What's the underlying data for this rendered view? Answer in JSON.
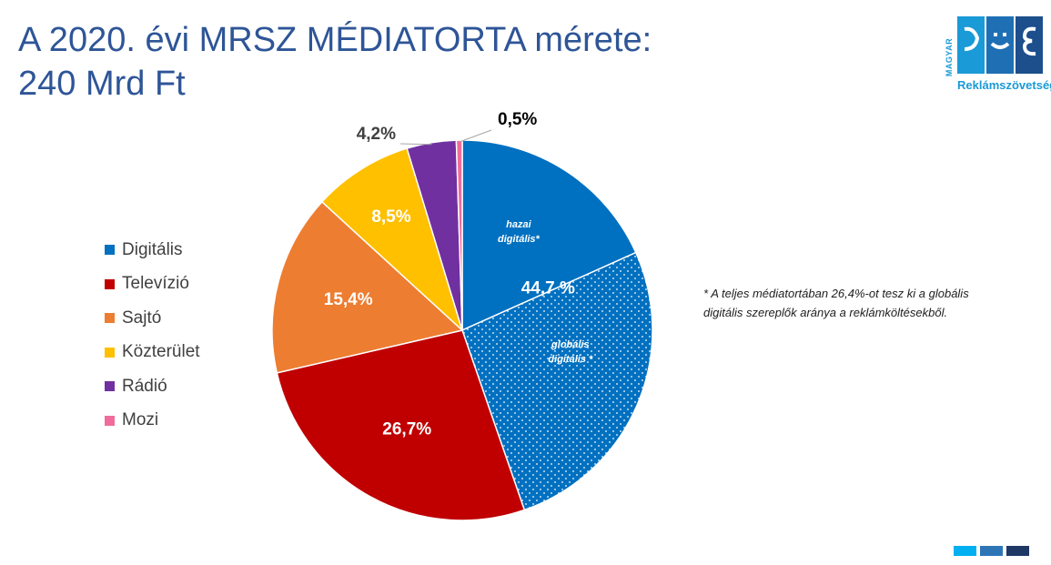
{
  "title": {
    "line1": "A 2020. évi MRSZ MÉDIATORTA mérete:",
    "line2": "240 Mrd Ft"
  },
  "logo": {
    "small_text": "MAGYAR",
    "large_text": "Reklámszövetség"
  },
  "chart_data": {
    "type": "pie",
    "start_angle_deg": 0,
    "direction": "clockwise",
    "slices": [
      {
        "name": "Digitális",
        "value": 44.7,
        "label": "44,7 %",
        "color": "#0070c0",
        "label_color": "#ffffff"
      },
      {
        "name": "Televízió",
        "value": 26.7,
        "label": "26,7%",
        "color": "#c00000",
        "label_color": "#ffffff"
      },
      {
        "name": "Sajtó",
        "value": 15.4,
        "label": "15,4%",
        "color": "#ed7d31",
        "label_color": "#ffffff"
      },
      {
        "name": "Közterület",
        "value": 8.5,
        "label": "8,5%",
        "color": "#ffc000",
        "label_color": "#ffffff"
      },
      {
        "name": "Rádió",
        "value": 4.2,
        "label": "4,2%",
        "color": "#7030a0",
        "label_color": "#404040"
      },
      {
        "name": "Mozi",
        "value": 0.5,
        "label": "0,5%",
        "color": "#f06c9b",
        "label_color": "#000000"
      }
    ],
    "digital_split": {
      "domestic": {
        "label_line1": "hazai",
        "label_line2": "digitális*",
        "value": 18.3
      },
      "global": {
        "label_line1": "globális",
        "label_line2": "digitális *",
        "value": 26.4,
        "pattern": "dotted"
      }
    },
    "legend": {
      "position": "left",
      "entries": [
        "Digitális",
        "Televízió",
        "Sajtó",
        "Közterület",
        "Rádió",
        "Mozi"
      ]
    }
  },
  "footnote": "* A teljes médiatortában 26,4%-ot tesz ki a globális digitális szereplők aránya a reklámköltésekből.",
  "colors": {
    "title": "#2e5597",
    "logo_light": "#1a9ad6",
    "logo_mid": "#1f6fb5",
    "logo_dark": "#1c4f8c",
    "footer": [
      "#00b0f0",
      "#2e75b6",
      "#1f3864"
    ]
  }
}
